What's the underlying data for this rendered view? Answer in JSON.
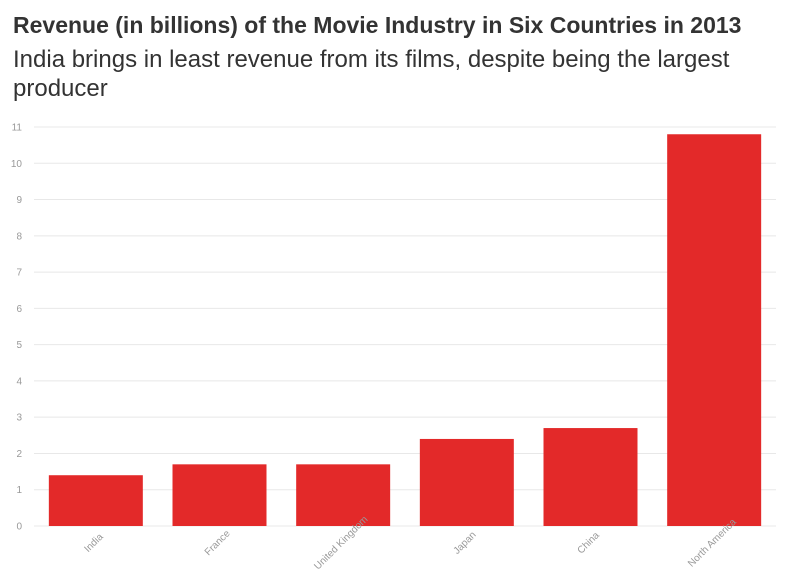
{
  "chart_data": {
    "type": "bar",
    "title": "Revenue (in billions) of the Movie Industry in Six Countries in 2013",
    "subtitle": "India brings in least revenue from its films, despite being the largest producer",
    "categories": [
      "India",
      "France",
      "United Kingdom",
      "Japan",
      "China",
      "North America"
    ],
    "values": [
      1.4,
      1.7,
      1.7,
      2.4,
      2.7,
      10.8
    ],
    "xlabel": "",
    "ylabel": "",
    "ylim": [
      0,
      11
    ],
    "yticks": [
      "0",
      "1",
      "2",
      "3",
      "4",
      "5",
      "6",
      "7",
      "8",
      "9",
      "10",
      "11"
    ],
    "grid": true,
    "bar_color": "#e32929"
  }
}
